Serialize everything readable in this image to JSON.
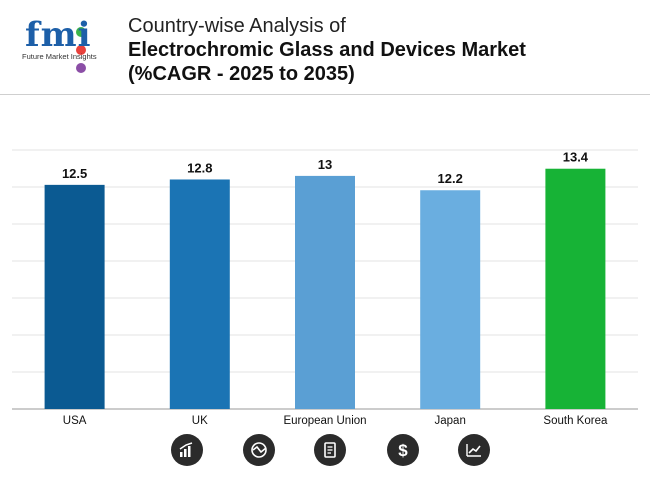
{
  "header": {
    "logo_text": "fmi",
    "logo_subtitle": "Future Market Insights",
    "title_line1": "Country-wise Analysis of",
    "title_line2": "Electrochromic Glass and Devices Market",
    "title_line3": "(%CAGR - 2025 to 2035)"
  },
  "colors": {
    "brand_blue": "#1d5fa8",
    "dot_green": "#3bb54a",
    "dot_red": "#e8413c",
    "dot_purple": "#8b4ea6"
  },
  "chart_data": {
    "type": "bar",
    "title": "Country-wise Analysis of Electrochromic Glass and Devices Market (%CAGR - 2025 to 2035)",
    "categories": [
      "USA",
      "UK",
      "European Union",
      "Japan",
      "South Korea"
    ],
    "values": [
      12.5,
      12.8,
      13,
      12.2,
      13.4
    ],
    "value_labels": [
      "12.5",
      "12.8",
      "13",
      "12.2",
      "13.4"
    ],
    "bar_colors": [
      "#0b5a92",
      "#1b74b4",
      "#5a9fd4",
      "#6aaee0",
      "#17b336"
    ],
    "xlabel": "",
    "ylabel": "",
    "ylim": [
      0,
      14.5
    ],
    "grid": true
  },
  "footer_icons": [
    "bar-chart-icon",
    "globe-chart-icon",
    "document-icon",
    "dollar-icon",
    "trend-line-icon"
  ]
}
